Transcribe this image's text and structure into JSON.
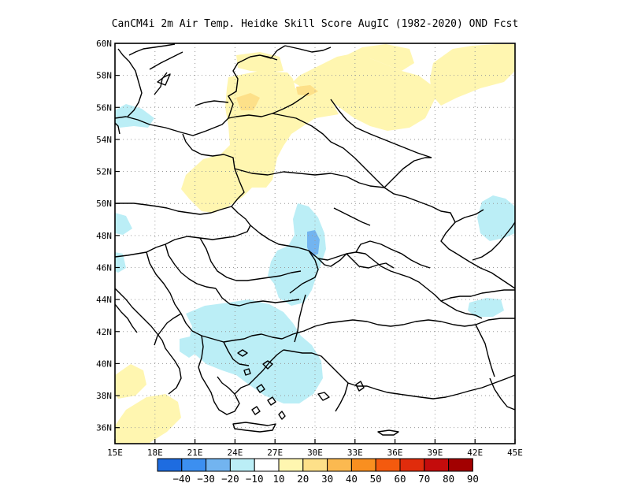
{
  "title": "CanCM4i  2m Air Temp. Heidke Skill Score AugIC (1982-2020) OND Fcst",
  "map": {
    "lon_range": [
      15,
      45
    ],
    "lat_range": [
      35,
      60
    ],
    "x_ticks": [
      "15E",
      "18E",
      "21E",
      "24E",
      "27E",
      "30E",
      "33E",
      "36E",
      "39E",
      "42E",
      "45E"
    ],
    "y_ticks": [
      "60N",
      "58N",
      "56N",
      "54N",
      "52N",
      "50N",
      "48N",
      "46N",
      "44N",
      "42N",
      "40N",
      "38N",
      "36N"
    ],
    "grid": "dotted",
    "skill_regions": [
      {
        "category": "10 to 20",
        "color": "#fff6b0",
        "area": "Baltic states / NE Poland / Belarus"
      },
      {
        "category": "20 to 30",
        "color": "#fde089",
        "area": "Latvia and NW Russia (small patches)"
      },
      {
        "category": "-20 to -10",
        "color": "#bbeef6",
        "area": "Moldova, eastern Romania, Bulgaria, Aegean, NW Turkey"
      },
      {
        "category": "-30 to -20",
        "color": "#72b4f0",
        "area": "Moldova (small patch)"
      },
      {
        "category": "10 to 20",
        "color": "#fff6b0",
        "area": "Eastern Russia near 58N 40E"
      },
      {
        "category": "-20 to -10",
        "color": "#bbeef6",
        "area": "Caucasus / Caspian margin"
      }
    ]
  },
  "colorbar": {
    "colors": [
      "#1e6ce0",
      "#3c8ff0",
      "#72b4f0",
      "#bbeef6",
      "#ffffff",
      "#fff6b0",
      "#fde089",
      "#fbb950",
      "#f98f20",
      "#f45a0e",
      "#e02c0c",
      "#c40c0c",
      "#a20000"
    ],
    "labels": [
      "-40",
      "-30",
      "-20",
      "-10",
      "10",
      "20",
      "30",
      "40",
      "50",
      "60",
      "70",
      "80",
      "90"
    ]
  }
}
